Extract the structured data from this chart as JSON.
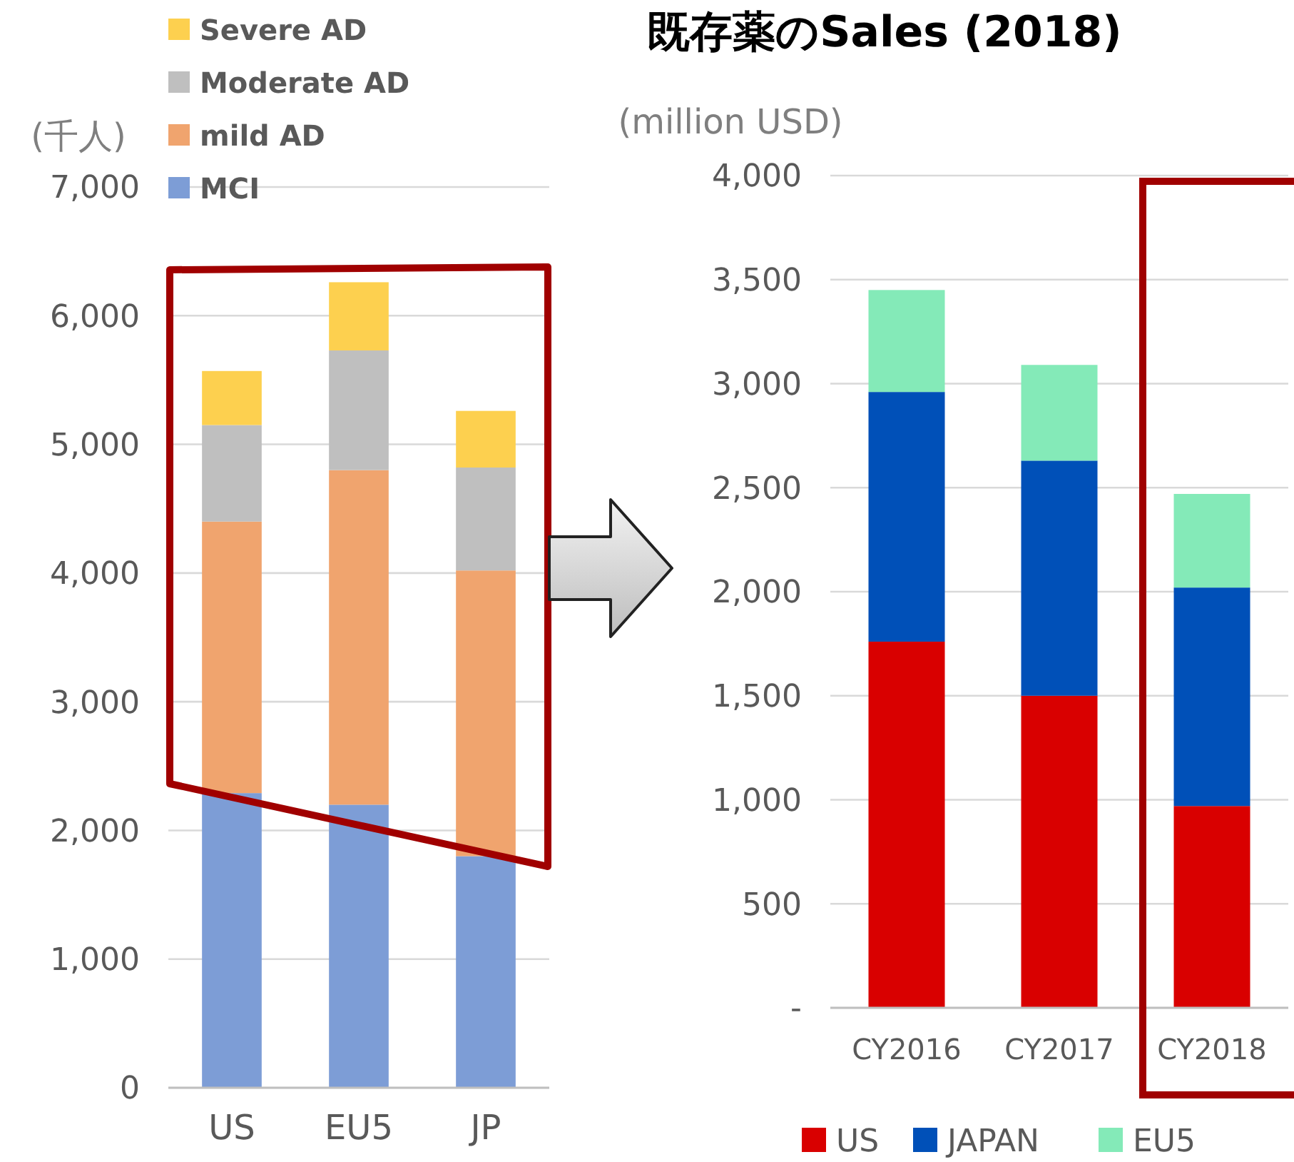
{
  "chart_data": [
    {
      "type": "bar",
      "stacked": true,
      "ylabel": "(千人)",
      "categories": [
        "US",
        "EU5",
        "JP"
      ],
      "series": [
        {
          "name": "MCI",
          "color": "#7d9dd6",
          "values": [
            2290,
            2200,
            1800
          ]
        },
        {
          "name": "mild AD",
          "color": "#f0a46e",
          "values": [
            2110,
            2600,
            2220
          ]
        },
        {
          "name": "Moderate AD",
          "color": "#bfbfbf",
          "values": [
            750,
            930,
            800
          ]
        },
        {
          "name": "Severe AD",
          "color": "#fdd04f",
          "values": [
            420,
            530,
            440
          ]
        }
      ],
      "ylim": [
        0,
        7000
      ],
      "yticks": [
        {
          "value": 0,
          "label": "0"
        },
        {
          "value": 1000,
          "label": "1,000"
        },
        {
          "value": 2000,
          "label": "2,000"
        },
        {
          "value": 3000,
          "label": "3,000"
        },
        {
          "value": 4000,
          "label": "4,000"
        },
        {
          "value": 5000,
          "label": "5,000"
        },
        {
          "value": 6000,
          "label": "6,000"
        },
        {
          "value": 7000,
          "label": "7,000"
        }
      ],
      "grid": "y",
      "legend": "top left"
    },
    {
      "type": "bar",
      "stacked": true,
      "title": "既存薬のSales (2018)",
      "ylabel": "(million USD)",
      "categories": [
        "CY2016",
        "CY2017",
        "CY2018"
      ],
      "series": [
        {
          "name": "US",
          "color": "#d90000",
          "values": [
            1760,
            1500,
            970
          ]
        },
        {
          "name": "JAPAN",
          "color": "#0050b8",
          "values": [
            1200,
            1130,
            1050
          ]
        },
        {
          "name": "EU5",
          "color": "#84eab8",
          "values": [
            490,
            460,
            450
          ]
        }
      ],
      "ylim": [
        0,
        4000
      ],
      "yticks": [
        {
          "value": 0,
          "label": "-"
        },
        {
          "value": 500,
          "label": "500"
        },
        {
          "value": 1000,
          "label": "1,000"
        },
        {
          "value": 1500,
          "label": "1,500"
        },
        {
          "value": 2000,
          "label": "2,000"
        },
        {
          "value": 2500,
          "label": "2,500"
        },
        {
          "value": 3000,
          "label": "3,000"
        },
        {
          "value": 3500,
          "label": "3,500"
        },
        {
          "value": 4000,
          "label": "4,000"
        }
      ],
      "grid": "y",
      "legend": "bottom"
    }
  ]
}
